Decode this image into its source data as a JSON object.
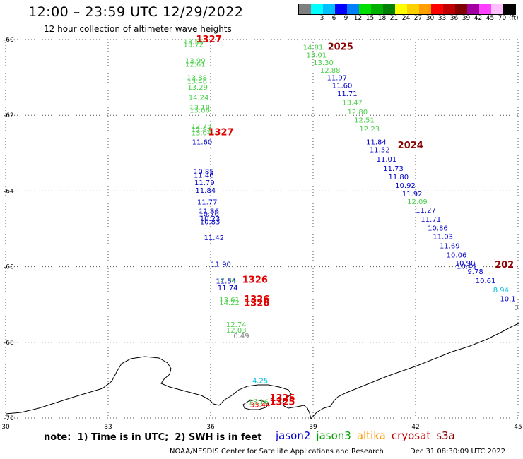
{
  "header": {
    "title": "12:00 – 23:59 UTC 12/29/2022",
    "subtitle": "12 hour collection of altimeter wave heights"
  },
  "colorbar": {
    "unit": "(ft)",
    "swatches": [
      {
        "color": "#808080",
        "label": ""
      },
      {
        "color": "#00ffff",
        "label": "3"
      },
      {
        "color": "#00c0ff",
        "label": "6"
      },
      {
        "color": "#0000ff",
        "label": "9"
      },
      {
        "color": "#0080ff",
        "label": "12"
      },
      {
        "color": "#00e000",
        "label": "15"
      },
      {
        "color": "#00b000",
        "label": "18"
      },
      {
        "color": "#008000",
        "label": "21"
      },
      {
        "color": "#ffff00",
        "label": "24"
      },
      {
        "color": "#ffd000",
        "label": "27"
      },
      {
        "color": "#ffa000",
        "label": "30"
      },
      {
        "color": "#ff0000",
        "label": "33"
      },
      {
        "color": "#c00000",
        "label": "36"
      },
      {
        "color": "#800000",
        "label": "39"
      },
      {
        "color": "#a000a0",
        "label": "42"
      },
      {
        "color": "#ff40ff",
        "label": "45"
      },
      {
        "color": "#ffc0ff",
        "label": "70"
      },
      {
        "color": "#000000",
        "label": ""
      }
    ]
  },
  "map": {
    "lon_ticks": [
      "30",
      "33",
      "36",
      "39",
      "42",
      "45"
    ],
    "lat_ticks": [
      "-60",
      "-62",
      "-64",
      "-66",
      "-68",
      "-70"
    ],
    "points": [
      {
        "t": "13.55",
        "c": "#4ccf4c",
        "lon": 35.5,
        "lat": -60.05
      },
      {
        "t": "13.72",
        "c": "#4ccf4c",
        "lon": 35.5,
        "lat": -60.12
      },
      {
        "t": "13.99",
        "c": "#4ccf4c",
        "lon": 35.55,
        "lat": -60.55
      },
      {
        "t": "12.61",
        "c": "#4ccf4c",
        "lon": 35.55,
        "lat": -60.64
      },
      {
        "t": "13.88",
        "c": "#4ccf4c",
        "lon": 35.6,
        "lat": -61.0
      },
      {
        "t": "13.46",
        "c": "#4ccf4c",
        "lon": 35.6,
        "lat": -61.09
      },
      {
        "t": "13.29",
        "c": "#4ccf4c",
        "lon": 35.62,
        "lat": -61.25
      },
      {
        "t": "14.24",
        "c": "#4ccf4c",
        "lon": 35.65,
        "lat": -61.52
      },
      {
        "t": "13.18",
        "c": "#4ccf4c",
        "lon": 35.68,
        "lat": -61.78
      },
      {
        "t": "13.06",
        "c": "#4ccf4c",
        "lon": 35.68,
        "lat": -61.86
      },
      {
        "t": "12.73",
        "c": "#4ccf4c",
        "lon": 35.73,
        "lat": -62.28
      },
      {
        "t": "12.84",
        "c": "#4ccf4c",
        "lon": 35.73,
        "lat": -62.37
      },
      {
        "t": "13.04",
        "c": "#4ccf4c",
        "lon": 35.73,
        "lat": -62.45
      },
      {
        "t": "11.60",
        "c": "#0000cc",
        "lon": 35.75,
        "lat": -62.7
      },
      {
        "t": "10.85",
        "c": "#0000cc",
        "lon": 35.8,
        "lat": -63.48
      },
      {
        "t": "11.46",
        "c": "#0000cc",
        "lon": 35.8,
        "lat": -63.57
      },
      {
        "t": "11.79",
        "c": "#0000cc",
        "lon": 35.82,
        "lat": -63.77
      },
      {
        "t": "11.84",
        "c": "#0000cc",
        "lon": 35.85,
        "lat": -63.97
      },
      {
        "t": "11.77",
        "c": "#0000cc",
        "lon": 35.9,
        "lat": -64.28
      },
      {
        "t": "11.36",
        "c": "#0000cc",
        "lon": 35.95,
        "lat": -64.52
      },
      {
        "t": "10.70",
        "c": "#0000cc",
        "lon": 35.95,
        "lat": -64.6
      },
      {
        "t": "10.23",
        "c": "#0000cc",
        "lon": 35.98,
        "lat": -64.72
      },
      {
        "t": "10.83",
        "c": "#0000cc",
        "lon": 35.98,
        "lat": -64.8
      },
      {
        "t": "11.42",
        "c": "#0000cc",
        "lon": 36.1,
        "lat": -65.22
      },
      {
        "t": "11.90",
        "c": "#0000cc",
        "lon": 36.3,
        "lat": -65.92
      },
      {
        "t": "12.84",
        "c": "#4ccf4c",
        "lon": 36.45,
        "lat": -66.34
      },
      {
        "t": "11.54",
        "c": "#0000cc",
        "lon": 36.45,
        "lat": -66.37
      },
      {
        "t": "11.74",
        "c": "#0000cc",
        "lon": 36.5,
        "lat": -66.55
      },
      {
        "t": "13.61",
        "c": "#4ccf4c",
        "lon": 36.55,
        "lat": -66.87
      },
      {
        "t": "14.22",
        "c": "#4ccf4c",
        "lon": 36.55,
        "lat": -66.94
      },
      {
        "t": "12.74",
        "c": "#4ccf4c",
        "lon": 36.75,
        "lat": -67.52
      },
      {
        "t": "12.03",
        "c": "#4ccf4c",
        "lon": 36.75,
        "lat": -67.67
      },
      {
        "t": "0.49",
        "c": "#808080",
        "lon": 36.9,
        "lat": -67.82
      },
      {
        "t": "4.25",
        "c": "#00c0e0",
        "lon": 37.45,
        "lat": -69.0
      },
      {
        "t": "13.16",
        "c": "#4ccf4c",
        "lon": 37.4,
        "lat": -69.56
      },
      {
        "t": "33.44",
        "c": "#ff0000",
        "lon": 37.45,
        "lat": -69.64
      },
      {
        "t": "14.81",
        "c": "#4ccf4c",
        "lon": 39.0,
        "lat": -60.2
      },
      {
        "t": "13.01",
        "c": "#4ccf4c",
        "lon": 39.1,
        "lat": -60.4
      },
      {
        "t": "13.30",
        "c": "#4ccf4c",
        "lon": 39.3,
        "lat": -60.6
      },
      {
        "t": "12.88",
        "c": "#4ccf4c",
        "lon": 39.5,
        "lat": -60.8
      },
      {
        "t": "11.97",
        "c": "#0000cc",
        "lon": 39.7,
        "lat": -61.0
      },
      {
        "t": "11.60",
        "c": "#0000cc",
        "lon": 39.85,
        "lat": -61.2
      },
      {
        "t": "11.71",
        "c": "#0000cc",
        "lon": 40.0,
        "lat": -61.42
      },
      {
        "t": "13.47",
        "c": "#4ccf4c",
        "lon": 40.15,
        "lat": -61.65
      },
      {
        "t": "12.80",
        "c": "#4ccf4c",
        "lon": 40.3,
        "lat": -61.9
      },
      {
        "t": "12.51",
        "c": "#4ccf4c",
        "lon": 40.5,
        "lat": -62.12
      },
      {
        "t": "12.23",
        "c": "#4ccf4c",
        "lon": 40.65,
        "lat": -62.35
      },
      {
        "t": "11.84",
        "c": "#0000cc",
        "lon": 40.85,
        "lat": -62.7
      },
      {
        "t": "11.52",
        "c": "#0000cc",
        "lon": 40.95,
        "lat": -62.9
      },
      {
        "t": "11.01",
        "c": "#0000cc",
        "lon": 41.15,
        "lat": -63.15
      },
      {
        "t": "11.73",
        "c": "#0000cc",
        "lon": 41.35,
        "lat": -63.4
      },
      {
        "t": "11.80",
        "c": "#0000cc",
        "lon": 41.5,
        "lat": -63.62
      },
      {
        "t": "10.92",
        "c": "#0000cc",
        "lon": 41.7,
        "lat": -63.84
      },
      {
        "t": "11.92",
        "c": "#0000cc",
        "lon": 41.9,
        "lat": -64.07
      },
      {
        "t": "12.09",
        "c": "#4ccf4c",
        "lon": 42.05,
        "lat": -64.27
      },
      {
        "t": "11.27",
        "c": "#0000cc",
        "lon": 42.3,
        "lat": -64.5
      },
      {
        "t": "11.71",
        "c": "#0000cc",
        "lon": 42.45,
        "lat": -64.74
      },
      {
        "t": "10.86",
        "c": "#0000cc",
        "lon": 42.65,
        "lat": -64.97
      },
      {
        "t": "11.03",
        "c": "#0000cc",
        "lon": 42.8,
        "lat": -65.2
      },
      {
        "t": "11.69",
        "c": "#0000cc",
        "lon": 43.0,
        "lat": -65.44
      },
      {
        "t": "10.06",
        "c": "#0000cc",
        "lon": 43.2,
        "lat": -65.68
      },
      {
        "t": "10.90",
        "c": "#0000cc",
        "lon": 43.45,
        "lat": -65.9
      },
      {
        "t": "10.41",
        "c": "#0000cc",
        "lon": 43.5,
        "lat": -65.98
      },
      {
        "t": "9.78",
        "c": "#0000cc",
        "lon": 43.75,
        "lat": -66.12
      },
      {
        "t": "10.61",
        "c": "#0000cc",
        "lon": 44.05,
        "lat": -66.36
      },
      {
        "t": "8.94",
        "c": "#00c0e0",
        "lon": 44.5,
        "lat": -66.6
      },
      {
        "t": "10.1",
        "c": "#0000cc",
        "lon": 44.7,
        "lat": -66.84
      },
      {
        "t": "0",
        "c": "#808080",
        "lon": 44.95,
        "lat": -67.07
      }
    ],
    "passes": [
      {
        "t": "1327",
        "c": "#e00000",
        "lon": 35.95,
        "lat": -60.0
      },
      {
        "t": "1327",
        "c": "#e00000",
        "lon": 36.3,
        "lat": -62.45
      },
      {
        "t": "1326",
        "c": "#e00000",
        "lon": 37.3,
        "lat": -66.35
      },
      {
        "t": "1326",
        "c": "#e00000",
        "lon": 37.35,
        "lat": -66.87
      },
      {
        "t": "1326",
        "c": "#e00000",
        "lon": 37.35,
        "lat": -66.97
      },
      {
        "t": "1325",
        "c": "#e00000",
        "lon": 38.1,
        "lat": -69.48
      },
      {
        "t": "1325",
        "c": "#e00000",
        "lon": 38.1,
        "lat": -69.58
      },
      {
        "t": "2025",
        "c": "#8b0000",
        "lon": 39.8,
        "lat": -60.2
      },
      {
        "t": "2024",
        "c": "#8b0000",
        "lon": 41.85,
        "lat": -62.8
      },
      {
        "t": "202",
        "c": "#8b0000",
        "lon": 44.6,
        "lat": -65.95
      }
    ]
  },
  "note": "note:  1) Time is in UTC;  2) SWH is in feet",
  "legend": [
    {
      "label": "jason2",
      "c": "#0000cc"
    },
    {
      "label": "jason3",
      "c": "#00a000"
    },
    {
      "label": "altika",
      "c": "#ff9900"
    },
    {
      "label": "cryosat",
      "c": "#cc0000"
    },
    {
      "label": "s3a",
      "c": "#8b0000"
    }
  ],
  "footer": "NOAA/NESDIS Center for Satellite Applications and Research",
  "footer_date": "Dec 31 08:30:09 UTC 2022"
}
